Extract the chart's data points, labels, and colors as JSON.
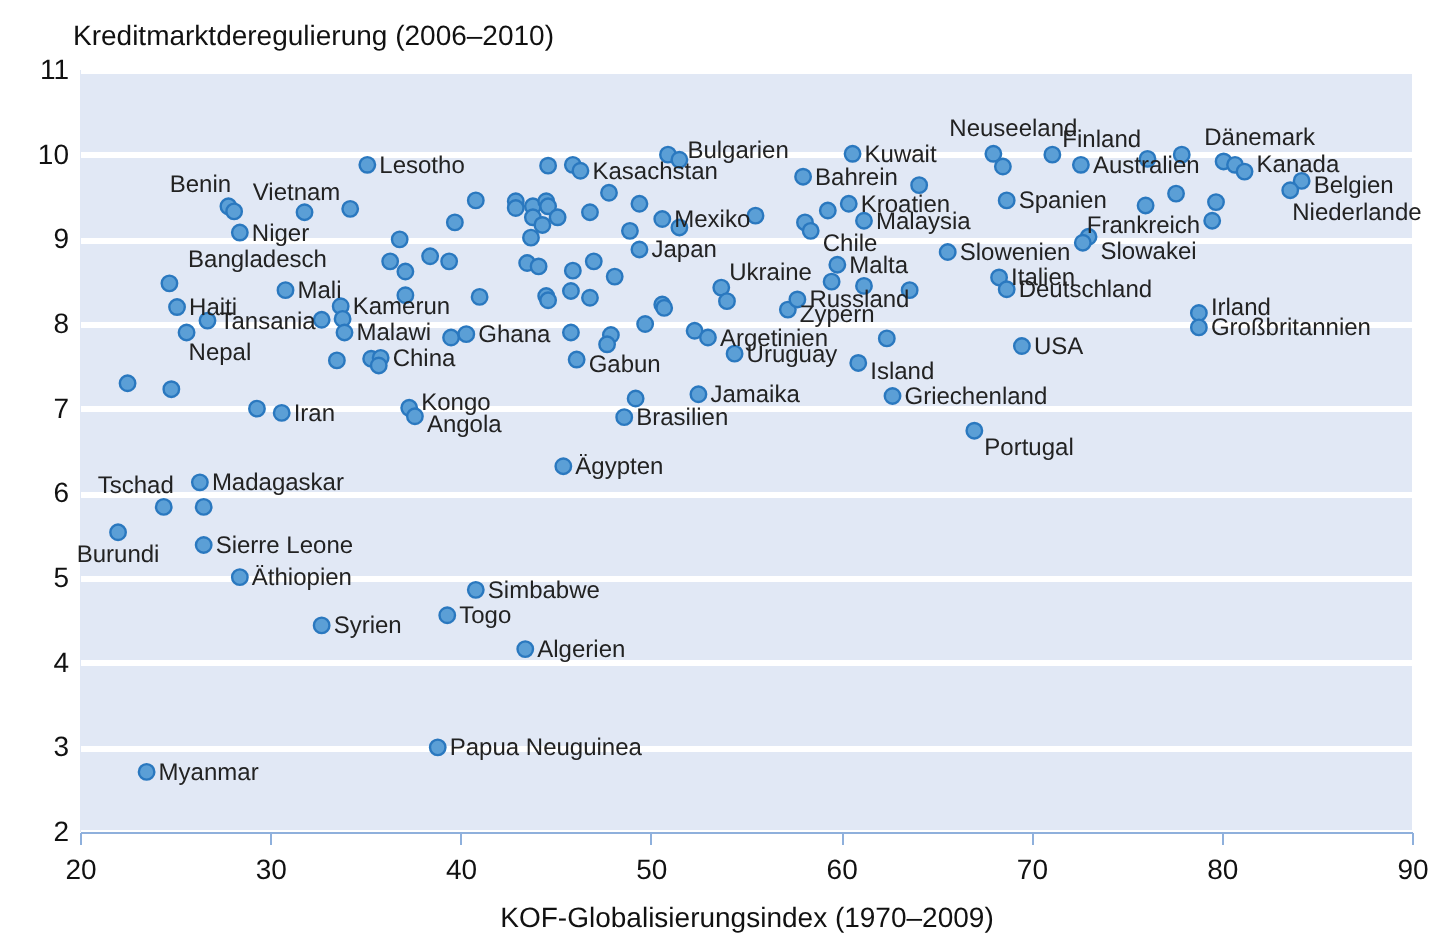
{
  "chart_data": {
    "type": "scatter",
    "ylabel": "Kreditmarktderegulierung (2006–2010)",
    "xlabel": "KOF-Globalisierungsindex (1970–2009)",
    "xlim": [
      20,
      90
    ],
    "xticks": [
      20,
      30,
      40,
      50,
      60,
      70,
      80,
      90
    ],
    "ylim": [
      2,
      11
    ],
    "yticks": [
      2,
      3,
      4,
      5,
      6,
      7,
      8,
      9,
      10,
      11
    ],
    "grid": "y",
    "marker": "circle",
    "series": [
      {
        "color": "#5b9fd6",
        "x": [
          35.1,
          27.8,
          28.1,
          31.8,
          34.2,
          40.8,
          39.7,
          28.4,
          36.8,
          36.3,
          37.1,
          38.4,
          39.4,
          24.7,
          30.8,
          37.1,
          41.0,
          25.1,
          33.7,
          26.7,
          32.7,
          33.8,
          33.9,
          25.6,
          39.5,
          40.3,
          33.5,
          35.3,
          35.8,
          35.7,
          22.5,
          24.8,
          29.3,
          30.6,
          37.3,
          37.6,
          26.3,
          24.4,
          26.5,
          22.0,
          26.5,
          28.4,
          32.7,
          40.8,
          39.3,
          43.4,
          38.8,
          23.5,
          45.4,
          48.6,
          49.2,
          52.5,
          46.1,
          45.8,
          47.9,
          47.7,
          49.7,
          52.3,
          53.0,
          54.4,
          60.9,
          62.4,
          62.7,
          67.0,
          69.5,
          57.2,
          57.7,
          53.7,
          54.0,
          44.5,
          44.6,
          45.8,
          46.8,
          50.6,
          50.7,
          59.5,
          61.2,
          63.6,
          59.8,
          49.4,
          43.5,
          44.1,
          45.9,
          47.0,
          48.1,
          43.7,
          48.9,
          42.9,
          42.9,
          43.8,
          44.5,
          44.6,
          43.8,
          44.3,
          45.1,
          46.8,
          49.4,
          47.8,
          50.6,
          51.5,
          55.5,
          44.6,
          45.9,
          46.3,
          50.9,
          51.5,
          60.6,
          58.0,
          60.4,
          59.3,
          61.2,
          58.1,
          58.4,
          64.1,
          68.0,
          68.5,
          71.1,
          72.6,
          76.1,
          77.9,
          80.1,
          80.7,
          81.2,
          84.2,
          83.6,
          68.7,
          76.0,
          77.6,
          79.7,
          79.5,
          73.0,
          72.7,
          65.6,
          68.3,
          68.7,
          78.8,
          78.8
        ],
        "values": [
          9.88,
          9.39,
          9.33,
          9.32,
          9.36,
          9.46,
          9.2,
          9.08,
          9.0,
          8.74,
          8.62,
          8.8,
          8.74,
          8.48,
          8.4,
          8.34,
          8.32,
          8.2,
          8.21,
          8.04,
          8.05,
          8.06,
          7.9,
          7.9,
          7.84,
          7.88,
          7.57,
          7.59,
          7.6,
          7.51,
          7.3,
          7.23,
          7.0,
          6.95,
          7.01,
          6.91,
          6.13,
          5.84,
          5.84,
          5.54,
          5.39,
          5.01,
          4.44,
          4.86,
          4.56,
          4.16,
          3.0,
          2.71,
          6.32,
          6.9,
          7.12,
          7.17,
          7.58,
          7.9,
          7.87,
          7.76,
          8.0,
          7.92,
          7.84,
          7.65,
          7.54,
          7.83,
          7.15,
          6.74,
          7.74,
          8.17,
          8.29,
          8.43,
          8.27,
          8.33,
          8.28,
          8.39,
          8.31,
          8.23,
          8.19,
          8.5,
          8.45,
          8.4,
          8.7,
          8.88,
          8.72,
          8.68,
          8.63,
          8.74,
          8.56,
          9.02,
          9.1,
          9.45,
          9.37,
          9.39,
          9.45,
          9.39,
          9.26,
          9.17,
          9.26,
          9.32,
          9.42,
          9.55,
          9.24,
          9.14,
          9.28,
          9.87,
          9.88,
          9.81,
          10.0,
          9.94,
          10.01,
          9.74,
          9.42,
          9.34,
          9.22,
          9.2,
          9.1,
          9.64,
          10.01,
          9.86,
          10.0,
          9.88,
          9.95,
          10.0,
          9.92,
          9.88,
          9.8,
          9.69,
          9.58,
          9.46,
          9.4,
          9.54,
          9.44,
          9.22,
          9.03,
          8.96,
          8.85,
          8.55,
          8.41,
          8.13,
          7.96
        ]
      }
    ],
    "annotations": [
      {
        "text": "Lesotho",
        "x": 35.1,
        "y": 9.88
      },
      {
        "text": "Benin",
        "x": 27.8,
        "y": 9.39
      },
      {
        "text": "Vietnam",
        "x": 31.8,
        "y": 9.32
      },
      {
        "text": "Niger",
        "x": 28.4,
        "y": 9.08
      },
      {
        "text": "Bangladesch",
        "x": 24.7,
        "y": 8.48
      },
      {
        "text": "Mali",
        "x": 30.8,
        "y": 8.4
      },
      {
        "text": "Haiti",
        "x": 25.1,
        "y": 8.2
      },
      {
        "text": "Kamerun",
        "x": 33.7,
        "y": 8.21
      },
      {
        "text": "Tansania",
        "x": 26.7,
        "y": 8.04
      },
      {
        "text": "Malawi",
        "x": 33.9,
        "y": 7.9
      },
      {
        "text": "Nepal",
        "x": 25.6,
        "y": 7.9
      },
      {
        "text": "Ghana",
        "x": 40.3,
        "y": 7.88
      },
      {
        "text": "China",
        "x": 35.8,
        "y": 7.6
      },
      {
        "text": "Iran",
        "x": 30.6,
        "y": 6.95
      },
      {
        "text": "Kongo",
        "x": 37.3,
        "y": 7.01
      },
      {
        "text": "Angola",
        "x": 37.6,
        "y": 6.91
      },
      {
        "text": "Madagaskar",
        "x": 26.3,
        "y": 6.13
      },
      {
        "text": "Tschad",
        "x": 24.4,
        "y": 5.84
      },
      {
        "text": "Burundi",
        "x": 22.0,
        "y": 5.54
      },
      {
        "text": "Sierre Leone",
        "x": 26.5,
        "y": 5.39
      },
      {
        "text": "Äthiopien",
        "x": 28.4,
        "y": 5.01
      },
      {
        "text": "Syrien",
        "x": 32.7,
        "y": 4.44
      },
      {
        "text": "Simbabwe",
        "x": 40.8,
        "y": 4.86
      },
      {
        "text": "Togo",
        "x": 39.3,
        "y": 4.56
      },
      {
        "text": "Algerien",
        "x": 43.4,
        "y": 4.16
      },
      {
        "text": "Papua Neuguinea",
        "x": 38.8,
        "y": 3.0
      },
      {
        "text": "Myanmar",
        "x": 23.5,
        "y": 2.71
      },
      {
        "text": "Ägypten",
        "x": 45.4,
        "y": 6.32
      },
      {
        "text": "Brasilien",
        "x": 48.6,
        "y": 6.9
      },
      {
        "text": "Jamaika",
        "x": 52.5,
        "y": 7.17
      },
      {
        "text": "Gabun",
        "x": 46.1,
        "y": 7.58
      },
      {
        "text": "Argetinien",
        "x": 53.0,
        "y": 7.84
      },
      {
        "text": "Uruguay",
        "x": 54.4,
        "y": 7.65
      },
      {
        "text": "Zypern",
        "x": 57.2,
        "y": 8.17
      },
      {
        "text": "Russland",
        "x": 57.7,
        "y": 8.29
      },
      {
        "text": "Ukraine",
        "x": 53.7,
        "y": 8.43
      },
      {
        "text": "Japan",
        "x": 49.4,
        "y": 8.88
      },
      {
        "text": "Mexiko",
        "x": 50.6,
        "y": 9.24
      },
      {
        "text": "Kasachstan",
        "x": 46.3,
        "y": 9.81
      },
      {
        "text": "Bulgarien",
        "x": 51.5,
        "y": 9.94
      },
      {
        "text": "Kuwait",
        "x": 60.6,
        "y": 10.01
      },
      {
        "text": "Bahrein",
        "x": 58.0,
        "y": 9.74
      },
      {
        "text": "Kroatien",
        "x": 60.4,
        "y": 9.42
      },
      {
        "text": "Malaysia",
        "x": 61.2,
        "y": 9.22
      },
      {
        "text": "Chile",
        "x": 58.4,
        "y": 9.1
      },
      {
        "text": "Malta",
        "x": 59.8,
        "y": 8.7
      },
      {
        "text": "Island",
        "x": 60.9,
        "y": 7.54
      },
      {
        "text": "Griechenland",
        "x": 62.7,
        "y": 7.15
      },
      {
        "text": "Portugal",
        "x": 67.0,
        "y": 6.74
      },
      {
        "text": "USA",
        "x": 69.5,
        "y": 7.74
      },
      {
        "text": "Italien",
        "x": 68.3,
        "y": 8.55
      },
      {
        "text": "Deutschland",
        "x": 68.7,
        "y": 8.41
      },
      {
        "text": "Slowenien",
        "x": 65.6,
        "y": 8.85
      },
      {
        "text": "Slowakei",
        "x": 73.0,
        "y": 9.03
      },
      {
        "text": "Frankreich",
        "x": 79.5,
        "y": 9.22
      },
      {
        "text": "Spanien",
        "x": 68.7,
        "y": 9.46
      },
      {
        "text": "Australien",
        "x": 72.6,
        "y": 9.88
      },
      {
        "text": "Finland",
        "x": 71.1,
        "y": 10.0
      },
      {
        "text": "Neuseeland",
        "x": 68.0,
        "y": 10.01
      },
      {
        "text": "Dänemark",
        "x": 80.1,
        "y": 9.92
      },
      {
        "text": "Kanada",
        "x": 81.2,
        "y": 9.8
      },
      {
        "text": "Belgien",
        "x": 84.2,
        "y": 9.69
      },
      {
        "text": "Niederlande",
        "x": 83.6,
        "y": 9.58
      },
      {
        "text": "Irland",
        "x": 78.8,
        "y": 8.13
      },
      {
        "text": "Großbritannien",
        "x": 78.8,
        "y": 7.96
      }
    ]
  }
}
